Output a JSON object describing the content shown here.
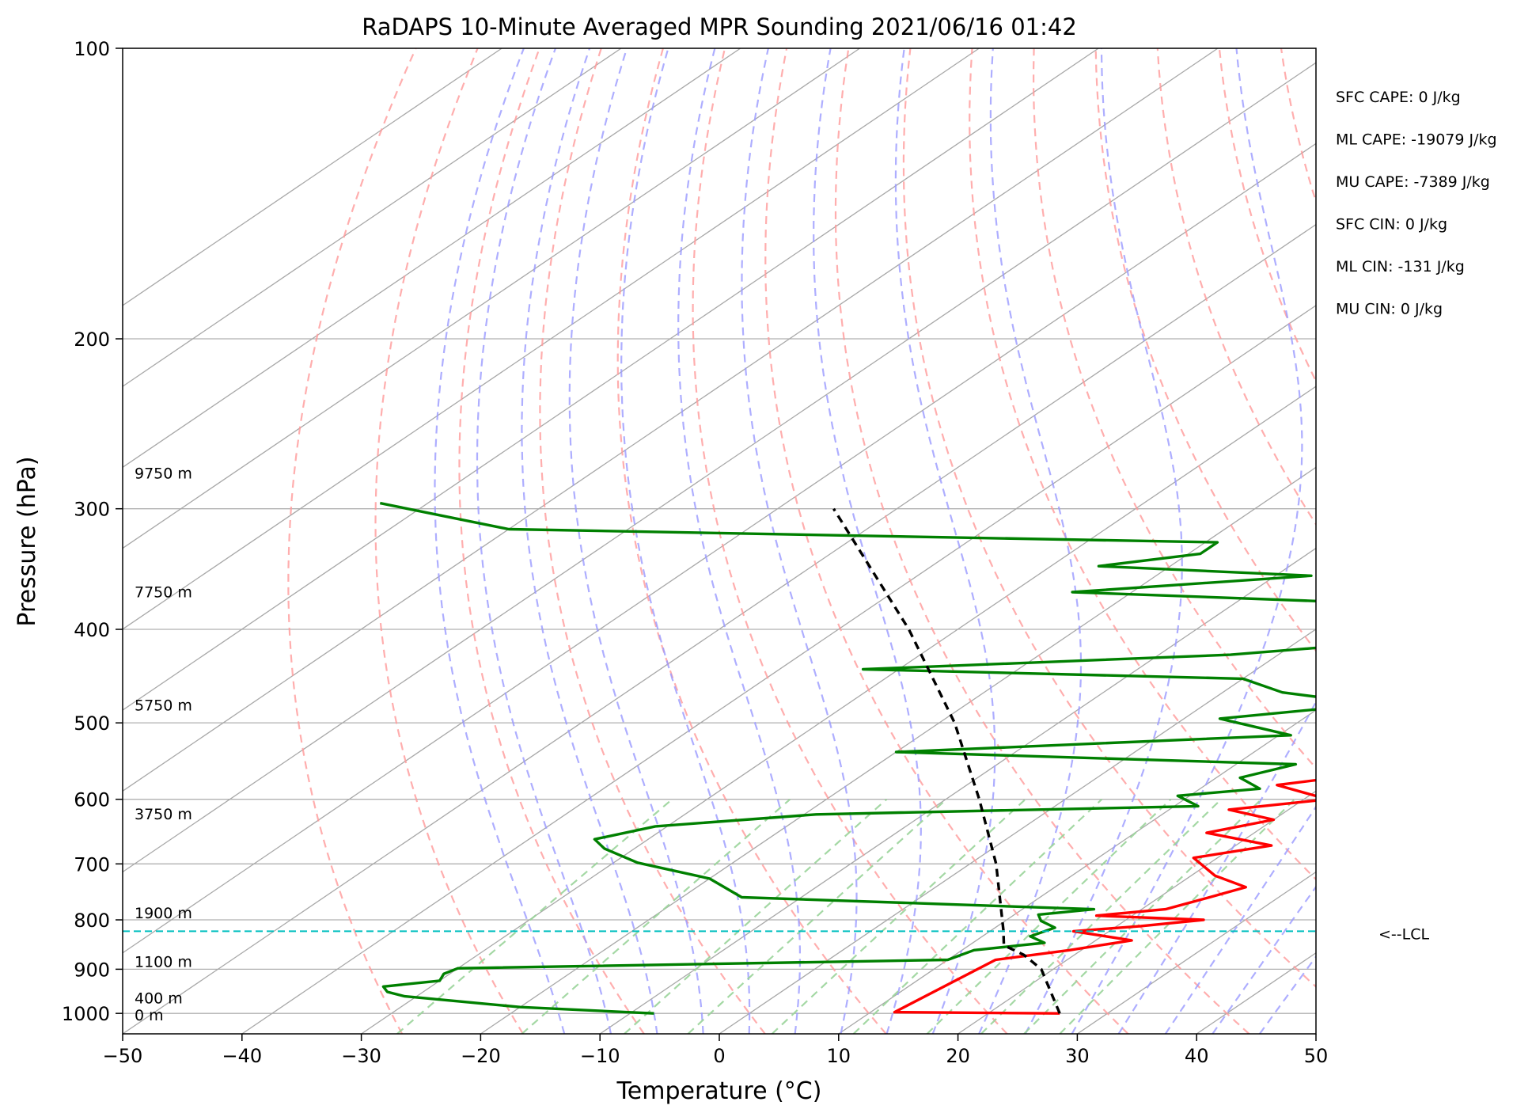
{
  "chart_data": {
    "type": "line",
    "title": "RaDAPS 10-Minute Averaged MPR Sounding 2021/06/16 01:42",
    "xlabel": "Temperature (°C)",
    "ylabel": "Pressure (hPa)",
    "xlim": [
      -50,
      50
    ],
    "ylim": [
      1050,
      100
    ],
    "y_scale": "log",
    "skew": true,
    "x_ticks": [
      -50,
      -40,
      -30,
      -20,
      -10,
      0,
      10,
      20,
      30,
      40,
      50
    ],
    "x_tick_labels": [
      "−50",
      "−40",
      "−30",
      "−20",
      "−10",
      "0",
      "10",
      "20",
      "30",
      "40",
      "50"
    ],
    "y_ticks": [
      100,
      200,
      300,
      400,
      500,
      600,
      700,
      800,
      900,
      1000
    ],
    "y_tick_labels": [
      "100",
      "200",
      "300",
      "400",
      "500",
      "600",
      "700",
      "800",
      "900",
      "1000"
    ],
    "grid": true,
    "background_lines": {
      "isotherm_color": "#a8a8a8",
      "dry_adiabat_color": "#ff9a9a",
      "moist_adiabat_color": "#9a9aff",
      "mixing_ratio_color": "#9ad49a"
    },
    "series": [
      {
        "color": "#ff0000",
        "points": [
          [
            1000,
            26.0
          ],
          [
            997,
            12.0
          ],
          [
            880,
            14.0
          ],
          [
            860,
            19.0
          ],
          [
            840,
            23.0
          ],
          [
            822,
            17.0
          ],
          [
            812,
            22.0
          ],
          [
            800,
            26.5
          ],
          [
            792,
            17.0
          ],
          [
            780,
            22.0
          ],
          [
            760,
            24.0
          ],
          [
            740,
            26.0
          ],
          [
            720,
            22.0
          ],
          [
            690,
            18.0
          ],
          [
            670,
            23.0
          ],
          [
            650,
            16.0
          ],
          [
            630,
            20.0
          ],
          [
            615,
            15.0
          ],
          [
            600,
            22.0
          ],
          [
            580,
            16.0
          ],
          [
            560,
            24.0
          ],
          [
            540,
            19.0
          ],
          [
            520,
            20.0
          ],
          [
            500,
            22.0
          ],
          [
            485,
            27.0
          ],
          [
            470,
            18.0
          ],
          [
            455,
            27.0
          ],
          [
            440,
            19.0
          ],
          [
            425,
            25.0
          ],
          [
            410,
            24.0
          ],
          [
            400,
            25.0
          ],
          [
            390,
            27.0
          ],
          [
            378,
            26.0
          ],
          [
            366,
            18.0
          ],
          [
            360,
            17.0
          ],
          [
            348,
            28.0
          ],
          [
            335,
            26.0
          ],
          [
            322,
            14.0
          ],
          [
            312,
            11.0
          ],
          [
            303,
            16.0
          ],
          [
            295,
            5.0
          ]
        ],
        "data_labels": []
      },
      {
        "color": "#008000",
        "points": [
          [
            1000,
            -8.0
          ],
          [
            985,
            -20.0
          ],
          [
            960,
            -31.0
          ],
          [
            950,
            -33.0
          ],
          [
            938,
            -34.0
          ],
          [
            925,
            -30.0
          ],
          [
            910,
            -30.5
          ],
          [
            898,
            -30.0
          ],
          [
            880,
            10.0
          ],
          [
            860,
            11.0
          ],
          [
            845,
            16.0
          ],
          [
            832,
            14.0
          ],
          [
            815,
            15.0
          ],
          [
            802,
            13.0
          ],
          [
            790,
            12.0
          ],
          [
            780,
            16.0
          ],
          [
            758,
            -15.0
          ],
          [
            725,
            -20.0
          ],
          [
            698,
            -28.0
          ],
          [
            675,
            -32.5
          ],
          [
            660,
            -34.5
          ],
          [
            640,
            -31.0
          ],
          [
            622,
            -19.0
          ],
          [
            610,
            12.0
          ],
          [
            595,
            9.0
          ],
          [
            585,
            15.0
          ],
          [
            570,
            12.0
          ],
          [
            552,
            15.0
          ],
          [
            536,
            -20.0
          ],
          [
            515,
            11.0
          ],
          [
            495,
            3.0
          ],
          [
            478,
            14.0
          ],
          [
            465,
            5.0
          ],
          [
            450,
            0.0
          ],
          [
            440,
            -33.0
          ],
          [
            425,
            -4.0
          ],
          [
            412,
            8.0
          ],
          [
            398,
            7.0
          ],
          [
            388,
            6.0
          ],
          [
            380,
            13.0
          ],
          [
            366,
            -25.0
          ],
          [
            352,
            -7.0
          ],
          [
            344,
            -26.0
          ],
          [
            334,
            -19.0
          ],
          [
            325,
            -19.0
          ],
          [
            315,
            -80.0
          ],
          [
            296,
            -94.0
          ]
        ],
        "data_labels": []
      },
      {
        "color": "#000000",
        "dashed": true,
        "points": [
          [
            1000,
            26.0
          ],
          [
            900,
            19.0
          ],
          [
            870,
            15.8
          ],
          [
            850,
            12.9
          ],
          [
            820,
            11.0
          ],
          [
            700,
            2.2
          ],
          [
            600,
            -7.2
          ],
          [
            500,
            -18.7
          ],
          [
            400,
            -34.1
          ],
          [
            300,
            -55.3
          ]
        ],
        "data_labels": []
      }
    ],
    "lcl": {
      "pressure": 822,
      "label": "<--LCL",
      "color": "#00bfbf"
    },
    "height_labels": [
      {
        "pressure": 275,
        "text": "9750 m"
      },
      {
        "pressure": 365,
        "text": "7750 m"
      },
      {
        "pressure": 478,
        "text": "5750 m"
      },
      {
        "pressure": 620,
        "text": "3750 m"
      },
      {
        "pressure": 785,
        "text": "1900 m"
      },
      {
        "pressure": 882,
        "text": "1100 m"
      },
      {
        "pressure": 962,
        "text": "400 m"
      },
      {
        "pressure": 1002,
        "text": "0 m"
      }
    ],
    "indices": [
      "SFC CAPE: 0 J/kg",
      "ML CAPE: -19079 J/kg",
      "MU CAPE: -7389 J/kg",
      "SFC CIN: 0 J/kg",
      "ML CIN: -131 J/kg",
      "MU CIN: 0 J/kg"
    ]
  }
}
